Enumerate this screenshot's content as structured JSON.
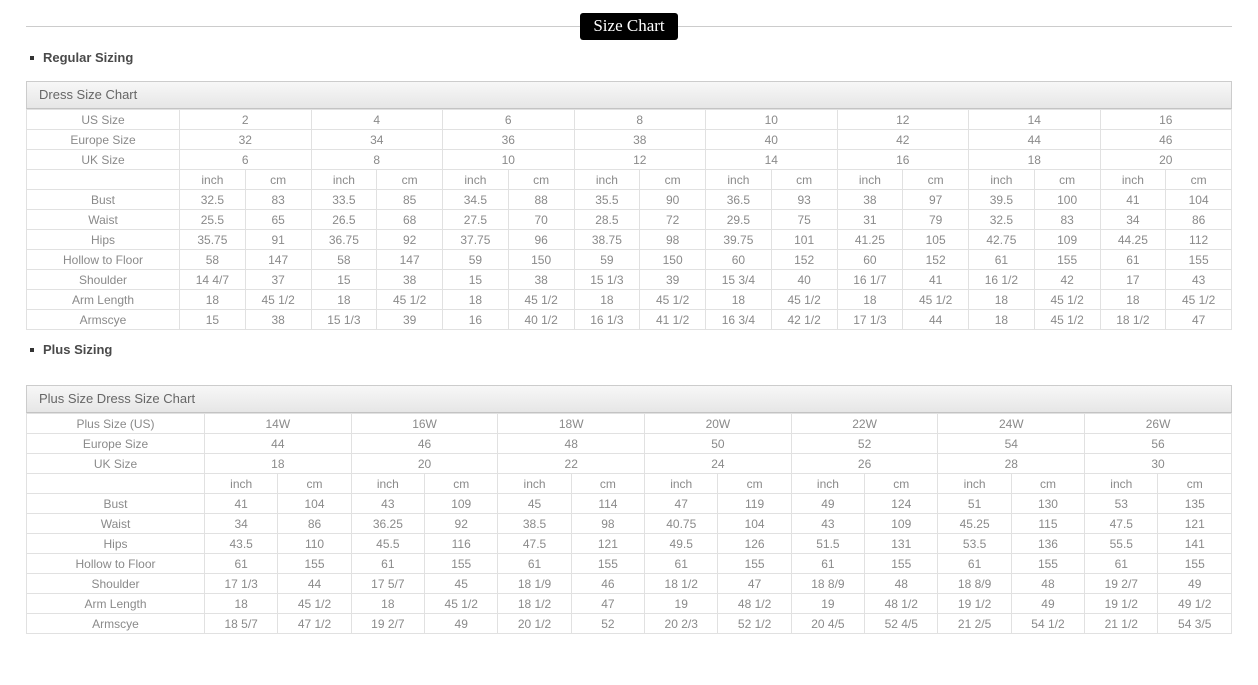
{
  "title": "Size Chart",
  "units": [
    "inch",
    "cm"
  ],
  "colors": {
    "badge_bg": "#000000",
    "badge_text": "#ffffff",
    "divider_line": "#cccccc",
    "heading_text": "#4a4a4a",
    "caption_text": "#666666",
    "caption_bg_top": "#f7f7f7",
    "caption_bg_bottom": "#e6e6e6",
    "cell_border": "#e1e1e1",
    "cell_text": "#8a8a8a"
  },
  "sections": [
    {
      "heading": "Regular Sizing",
      "table": {
        "caption": "Dress Size Chart",
        "size_rows": [
          {
            "label": "US Size",
            "values": [
              "2",
              "4",
              "6",
              "8",
              "10",
              "12",
              "14",
              "16"
            ]
          },
          {
            "label": "Europe Size",
            "values": [
              "32",
              "34",
              "36",
              "38",
              "40",
              "42",
              "44",
              "46"
            ]
          },
          {
            "label": "UK Size",
            "values": [
              "6",
              "8",
              "10",
              "12",
              "14",
              "16",
              "18",
              "20"
            ]
          }
        ],
        "measurement_rows": [
          {
            "label": "Bust",
            "values": [
              [
                "32.5",
                "83"
              ],
              [
                "33.5",
                "85"
              ],
              [
                "34.5",
                "88"
              ],
              [
                "35.5",
                "90"
              ],
              [
                "36.5",
                "93"
              ],
              [
                "38",
                "97"
              ],
              [
                "39.5",
                "100"
              ],
              [
                "41",
                "104"
              ]
            ]
          },
          {
            "label": "Waist",
            "values": [
              [
                "25.5",
                "65"
              ],
              [
                "26.5",
                "68"
              ],
              [
                "27.5",
                "70"
              ],
              [
                "28.5",
                "72"
              ],
              [
                "29.5",
                "75"
              ],
              [
                "31",
                "79"
              ],
              [
                "32.5",
                "83"
              ],
              [
                "34",
                "86"
              ]
            ]
          },
          {
            "label": "Hips",
            "values": [
              [
                "35.75",
                "91"
              ],
              [
                "36.75",
                "92"
              ],
              [
                "37.75",
                "96"
              ],
              [
                "38.75",
                "98"
              ],
              [
                "39.75",
                "101"
              ],
              [
                "41.25",
                "105"
              ],
              [
                "42.75",
                "109"
              ],
              [
                "44.25",
                "112"
              ]
            ]
          },
          {
            "label": "Hollow to Floor",
            "values": [
              [
                "58",
                "147"
              ],
              [
                "58",
                "147"
              ],
              [
                "59",
                "150"
              ],
              [
                "59",
                "150"
              ],
              [
                "60",
                "152"
              ],
              [
                "60",
                "152"
              ],
              [
                "61",
                "155"
              ],
              [
                "61",
                "155"
              ]
            ]
          },
          {
            "label": "Shoulder",
            "values": [
              [
                "14 4/7",
                "37"
              ],
              [
                "15",
                "38"
              ],
              [
                "15",
                "38"
              ],
              [
                "15 1/3",
                "39"
              ],
              [
                "15 3/4",
                "40"
              ],
              [
                "16 1/7",
                "41"
              ],
              [
                "16 1/2",
                "42"
              ],
              [
                "17",
                "43"
              ]
            ]
          },
          {
            "label": "Arm Length",
            "values": [
              [
                "18",
                "45 1/2"
              ],
              [
                "18",
                "45 1/2"
              ],
              [
                "18",
                "45 1/2"
              ],
              [
                "18",
                "45 1/2"
              ],
              [
                "18",
                "45 1/2"
              ],
              [
                "18",
                "45 1/2"
              ],
              [
                "18",
                "45 1/2"
              ],
              [
                "18",
                "45 1/2"
              ]
            ]
          },
          {
            "label": "Armscye",
            "values": [
              [
                "15",
                "38"
              ],
              [
                "15 1/3",
                "39"
              ],
              [
                "16",
                "40 1/2"
              ],
              [
                "16 1/3",
                "41 1/2"
              ],
              [
                "16 3/4",
                "42 1/2"
              ],
              [
                "17 1/3",
                "44"
              ],
              [
                "18",
                "45 1/2"
              ],
              [
                "18 1/2",
                "47"
              ]
            ]
          }
        ]
      }
    },
    {
      "heading": "Plus Sizing",
      "table": {
        "caption": "Plus Size Dress Size Chart",
        "size_rows": [
          {
            "label": "Plus Size (US)",
            "values": [
              "14W",
              "16W",
              "18W",
              "20W",
              "22W",
              "24W",
              "26W"
            ]
          },
          {
            "label": "Europe Size",
            "values": [
              "44",
              "46",
              "48",
              "50",
              "52",
              "54",
              "56"
            ]
          },
          {
            "label": "UK Size",
            "values": [
              "18",
              "20",
              "22",
              "24",
              "26",
              "28",
              "30"
            ]
          }
        ],
        "measurement_rows": [
          {
            "label": "Bust",
            "values": [
              [
                "41",
                "104"
              ],
              [
                "43",
                "109"
              ],
              [
                "45",
                "114"
              ],
              [
                "47",
                "119"
              ],
              [
                "49",
                "124"
              ],
              [
                "51",
                "130"
              ],
              [
                "53",
                "135"
              ]
            ]
          },
          {
            "label": "Waist",
            "values": [
              [
                "34",
                "86"
              ],
              [
                "36.25",
                "92"
              ],
              [
                "38.5",
                "98"
              ],
              [
                "40.75",
                "104"
              ],
              [
                "43",
                "109"
              ],
              [
                "45.25",
                "115"
              ],
              [
                "47.5",
                "121"
              ]
            ]
          },
          {
            "label": "Hips",
            "values": [
              [
                "43.5",
                "110"
              ],
              [
                "45.5",
                "116"
              ],
              [
                "47.5",
                "121"
              ],
              [
                "49.5",
                "126"
              ],
              [
                "51.5",
                "131"
              ],
              [
                "53.5",
                "136"
              ],
              [
                "55.5",
                "141"
              ]
            ]
          },
          {
            "label": "Hollow to Floor",
            "values": [
              [
                "61",
                "155"
              ],
              [
                "61",
                "155"
              ],
              [
                "61",
                "155"
              ],
              [
                "61",
                "155"
              ],
              [
                "61",
                "155"
              ],
              [
                "61",
                "155"
              ],
              [
                "61",
                "155"
              ]
            ]
          },
          {
            "label": "Shoulder",
            "values": [
              [
                "17 1/3",
                "44"
              ],
              [
                "17 5/7",
                "45"
              ],
              [
                "18 1/9",
                "46"
              ],
              [
                "18 1/2",
                "47"
              ],
              [
                "18 8/9",
                "48"
              ],
              [
                "18 8/9",
                "48"
              ],
              [
                "19 2/7",
                "49"
              ]
            ]
          },
          {
            "label": "Arm Length",
            "values": [
              [
                "18",
                "45 1/2"
              ],
              [
                "18",
                "45 1/2"
              ],
              [
                "18 1/2",
                "47"
              ],
              [
                "19",
                "48 1/2"
              ],
              [
                "19",
                "48 1/2"
              ],
              [
                "19 1/2",
                "49"
              ],
              [
                "19 1/2",
                "49 1/2"
              ]
            ]
          },
          {
            "label": "Armscye",
            "values": [
              [
                "18 5/7",
                "47 1/2"
              ],
              [
                "19 2/7",
                "49"
              ],
              [
                "20 1/2",
                "52"
              ],
              [
                "20 2/3",
                "52 1/2"
              ],
              [
                "20 4/5",
                "52 4/5"
              ],
              [
                "21 2/5",
                "54 1/2"
              ],
              [
                "21 1/2",
                "54 3/5"
              ]
            ]
          }
        ]
      }
    }
  ]
}
